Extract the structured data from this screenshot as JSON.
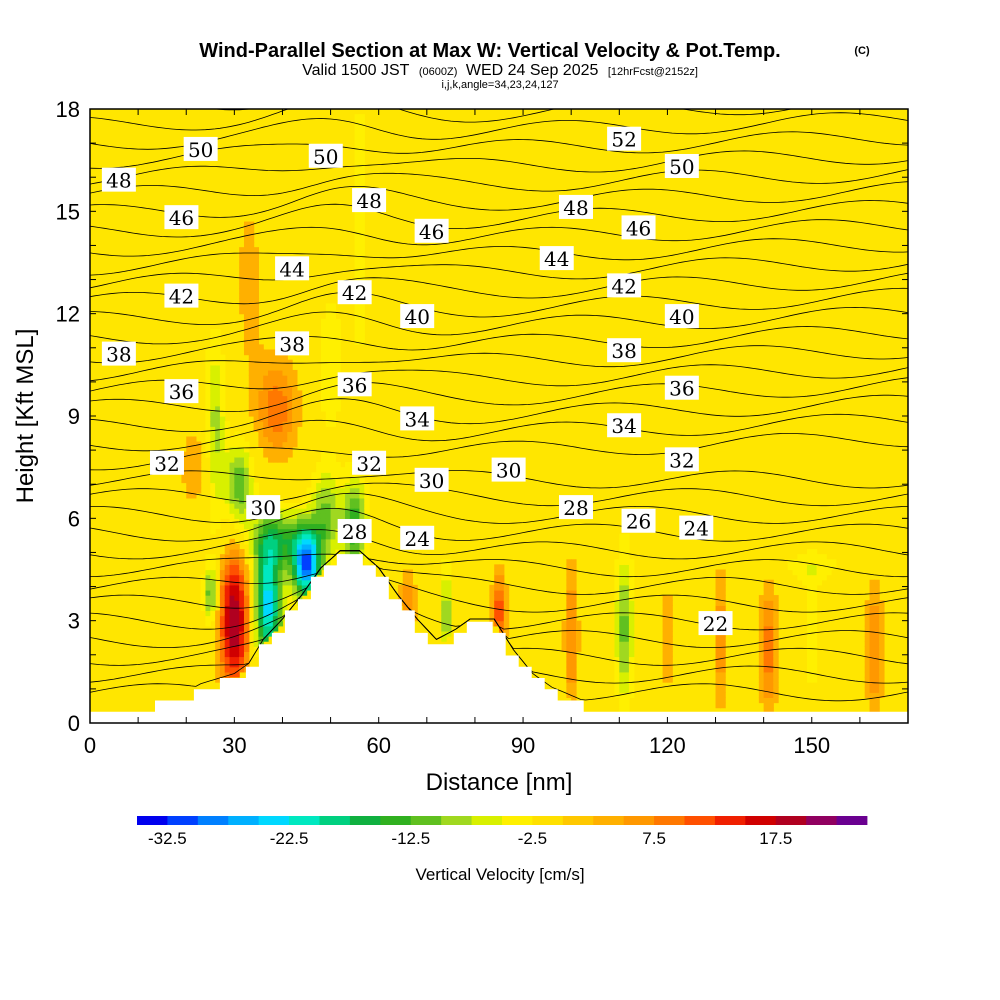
{
  "header": {
    "title": "Wind-Parallel Section at Max W: Vertical Velocity & Pot.Temp.",
    "copyright": "(C)",
    "valid_prefix": "Valid 1500 JST",
    "valid_z": "(0600Z)",
    "valid_date": "WED 24 Sep 2025",
    "forecast": "[12hrFcst@2152z]",
    "indices": "i,j,k,angle=34,23,24,127"
  },
  "chart_data": {
    "type": "heatmap",
    "title": "Wind-Parallel Section at Max W: Vertical Velocity & Pot.Temp.",
    "xlabel": "Distance [nm]",
    "ylabel": "Height [Kft MSL]",
    "xlim": [
      0,
      170
    ],
    "ylim": [
      0,
      18
    ],
    "xticks": [
      "0",
      "30",
      "60",
      "90",
      "120",
      "150"
    ],
    "yticks": [
      "0",
      "3",
      "6",
      "9",
      "12",
      "15",
      "18"
    ],
    "background_value": "-2.5 to 2.5",
    "colorbar": {
      "label": "Vertical Velocity [cm/s]",
      "ticks": [
        "-32.5",
        "-22.5",
        "-12.5",
        "-2.5",
        "7.5",
        "17.5"
      ],
      "colors": [
        "#0000ee",
        "#0040ff",
        "#0080ff",
        "#00b0ff",
        "#00d8ff",
        "#00e8c0",
        "#00d080",
        "#10b040",
        "#30b020",
        "#60c020",
        "#a0d820",
        "#d8f000",
        "#fff000",
        "#ffe000",
        "#ffc800",
        "#ffb000",
        "#ff9800",
        "#ff7800",
        "#ff5000",
        "#f02000",
        "#d00000",
        "#b00020",
        "#900060",
        "#6a0090"
      ]
    },
    "terrain_kft": [
      {
        "x": 0,
        "h": 0.3
      },
      {
        "x": 20,
        "h": 0.6
      },
      {
        "x": 23,
        "h": 1.0
      },
      {
        "x": 30,
        "h": 1.3
      },
      {
        "x": 33,
        "h": 1.6
      },
      {
        "x": 36,
        "h": 2.3
      },
      {
        "x": 40,
        "h": 2.9
      },
      {
        "x": 44,
        "h": 3.6
      },
      {
        "x": 48,
        "h": 4.4
      },
      {
        "x": 52,
        "h": 4.9
      },
      {
        "x": 56,
        "h": 4.9
      },
      {
        "x": 60,
        "h": 4.4
      },
      {
        "x": 64,
        "h": 3.6
      },
      {
        "x": 68,
        "h": 2.9
      },
      {
        "x": 72,
        "h": 2.3
      },
      {
        "x": 76,
        "h": 2.6
      },
      {
        "x": 79,
        "h": 2.9
      },
      {
        "x": 84,
        "h": 2.9
      },
      {
        "x": 88,
        "h": 2.0
      },
      {
        "x": 92,
        "h": 1.3
      },
      {
        "x": 96,
        "h": 0.9
      },
      {
        "x": 101,
        "h": 0.6
      },
      {
        "x": 106,
        "h": 0.3
      },
      {
        "x": 170,
        "h": 0.3
      }
    ],
    "velocity_features": [
      {
        "x": 30,
        "z": 3.0,
        "sx": 2.2,
        "sz": 1.5,
        "v": 20
      },
      {
        "x": 25,
        "z": 3.8,
        "sx": 1.0,
        "sz": 0.6,
        "v": -12
      },
      {
        "x": 37,
        "z": 3.5,
        "sx": 2.0,
        "sz": 1.3,
        "v": -24
      },
      {
        "x": 45,
        "z": 4.6,
        "sx": 2.0,
        "sz": 0.7,
        "v": -28
      },
      {
        "x": 40,
        "z": 5.4,
        "sx": 5.0,
        "sz": 0.6,
        "v": -12
      },
      {
        "x": 26,
        "z": 8.5,
        "sx": 1.5,
        "sz": 2.0,
        "v": -9
      },
      {
        "x": 31,
        "z": 7.0,
        "sx": 2.0,
        "sz": 0.9,
        "v": -13
      },
      {
        "x": 49,
        "z": 6.2,
        "sx": 2.2,
        "sz": 0.9,
        "v": -10
      },
      {
        "x": 55,
        "z": 5.8,
        "sx": 1.8,
        "sz": 1.0,
        "v": -14
      },
      {
        "x": 39,
        "z": 9.2,
        "sx": 3.0,
        "sz": 1.0,
        "v": 9
      },
      {
        "x": 50,
        "z": 10.5,
        "sx": 2.0,
        "sz": 1.5,
        "v": -5
      },
      {
        "x": 56,
        "z": 14.5,
        "sx": 1.2,
        "sz": 3.0,
        "v": -5
      },
      {
        "x": 22,
        "z": 7.5,
        "sx": 3.0,
        "sz": 1.0,
        "v": 4
      },
      {
        "x": 33,
        "z": 13.0,
        "sx": 3.0,
        "sz": 3.0,
        "v": 3
      },
      {
        "x": 66,
        "z": 3.3,
        "sx": 1.2,
        "sz": 0.8,
        "v": 8
      },
      {
        "x": 74,
        "z": 3.2,
        "sx": 0.8,
        "sz": 1.0,
        "v": -10
      },
      {
        "x": 85,
        "z": 3.3,
        "sx": 1.0,
        "sz": 0.8,
        "v": 12
      },
      {
        "x": 100,
        "z": 2.5,
        "sx": 1.0,
        "sz": 1.6,
        "v": 8
      },
      {
        "x": 111,
        "z": 2.8,
        "sx": 1.3,
        "sz": 1.6,
        "v": -11
      },
      {
        "x": 120,
        "z": 2.5,
        "sx": 1.0,
        "sz": 1.5,
        "v": 4
      },
      {
        "x": 131,
        "z": 2.5,
        "sx": 1.0,
        "sz": 1.5,
        "v": 7
      },
      {
        "x": 141,
        "z": 2.2,
        "sx": 1.3,
        "sz": 1.4,
        "v": 9
      },
      {
        "x": 150,
        "z": 2.5,
        "sx": 1.0,
        "sz": 1.5,
        "v": -4
      },
      {
        "x": 163,
        "z": 2.2,
        "sx": 1.3,
        "sz": 1.4,
        "v": 8
      },
      {
        "x": 150,
        "z": 4.6,
        "sx": 5.0,
        "sz": 0.4,
        "v": -4
      }
    ],
    "potential_temperature_labels": [
      {
        "text": "50",
        "x": 23,
        "z": 16.8
      },
      {
        "text": "48",
        "x": 6,
        "z": 15.9
      },
      {
        "text": "46",
        "x": 19,
        "z": 14.8
      },
      {
        "text": "42",
        "x": 19,
        "z": 12.5
      },
      {
        "text": "38",
        "x": 6,
        "z": 10.8
      },
      {
        "text": "36",
        "x": 19,
        "z": 9.7
      },
      {
        "text": "32",
        "x": 16,
        "z": 7.6
      },
      {
        "text": "50",
        "x": 49,
        "z": 16.6
      },
      {
        "text": "48",
        "x": 58,
        "z": 15.3
      },
      {
        "text": "44",
        "x": 42,
        "z": 13.3
      },
      {
        "text": "42",
        "x": 55,
        "z": 12.6
      },
      {
        "text": "38",
        "x": 42,
        "z": 11.1
      },
      {
        "text": "36",
        "x": 55,
        "z": 9.9
      },
      {
        "text": "32",
        "x": 58,
        "z": 7.6
      },
      {
        "text": "30",
        "x": 36,
        "z": 6.3
      },
      {
        "text": "28",
        "x": 55,
        "z": 5.6
      },
      {
        "text": "46",
        "x": 71,
        "z": 14.4
      },
      {
        "text": "40",
        "x": 68,
        "z": 11.9
      },
      {
        "text": "34",
        "x": 68,
        "z": 8.9
      },
      {
        "text": "30",
        "x": 71,
        "z": 7.1
      },
      {
        "text": "24",
        "x": 68,
        "z": 5.4
      },
      {
        "text": "30",
        "x": 87,
        "z": 7.4
      },
      {
        "text": "52",
        "x": 111,
        "z": 17.1
      },
      {
        "text": "48",
        "x": 101,
        "z": 15.1
      },
      {
        "text": "44",
        "x": 97,
        "z": 13.6
      },
      {
        "text": "46",
        "x": 114,
        "z": 14.5
      },
      {
        "text": "42",
        "x": 111,
        "z": 12.8
      },
      {
        "text": "38",
        "x": 111,
        "z": 10.9
      },
      {
        "text": "34",
        "x": 111,
        "z": 8.7
      },
      {
        "text": "28",
        "x": 101,
        "z": 6.3
      },
      {
        "text": "26",
        "x": 114,
        "z": 5.9
      },
      {
        "text": "50",
        "x": 123,
        "z": 16.3
      },
      {
        "text": "40",
        "x": 123,
        "z": 11.9
      },
      {
        "text": "36",
        "x": 123,
        "z": 9.8
      },
      {
        "text": "32",
        "x": 123,
        "z": 7.7
      },
      {
        "text": "24",
        "x": 126,
        "z": 5.7
      },
      {
        "text": "22",
        "x": 130,
        "z": 2.9
      }
    ]
  }
}
